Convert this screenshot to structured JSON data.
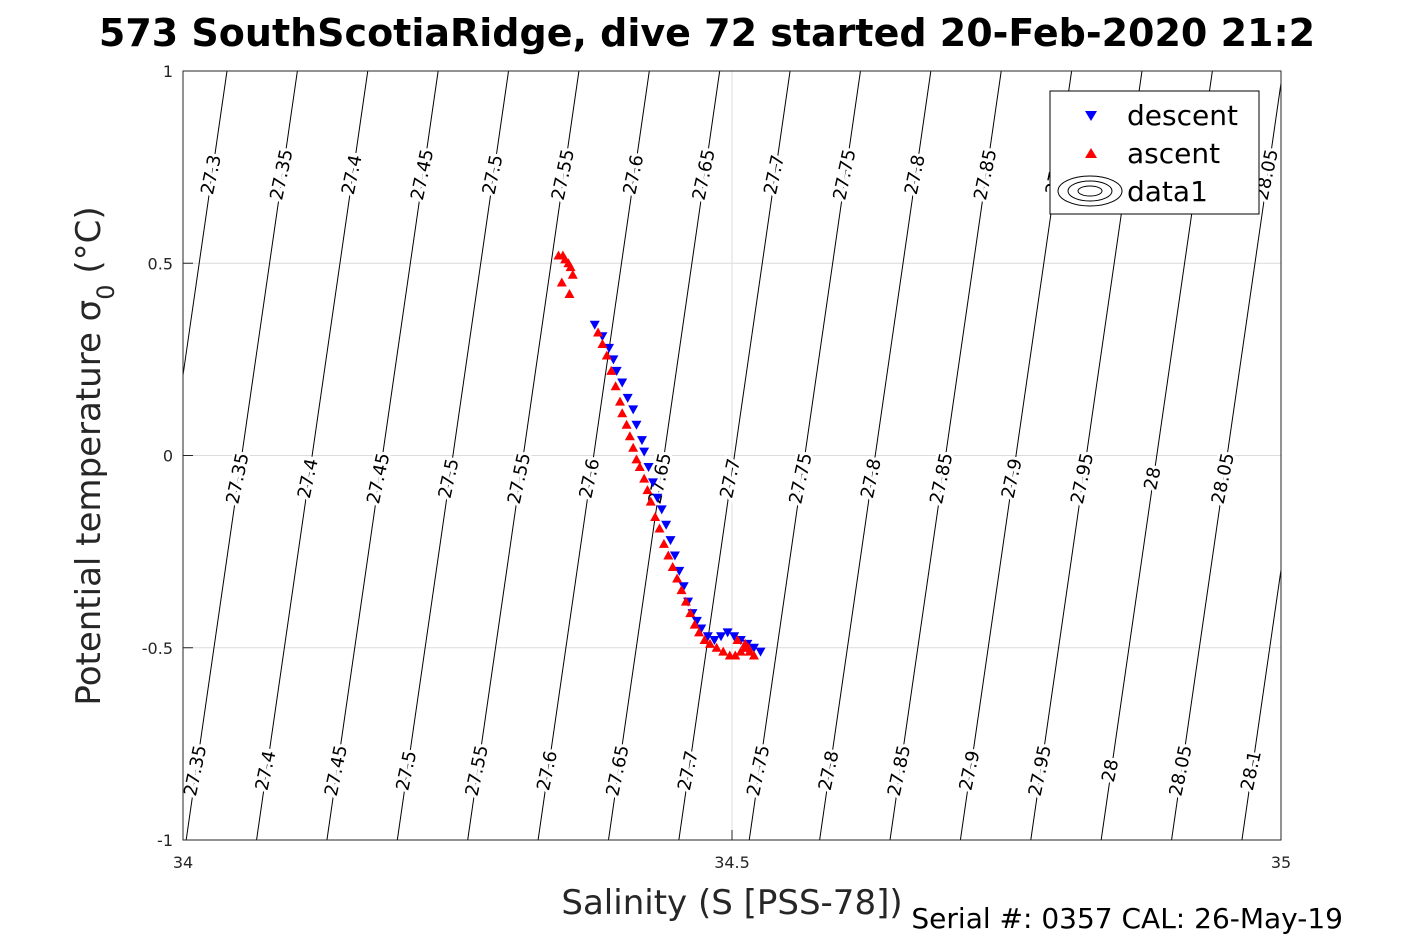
{
  "chart_data": {
    "type": "scatter",
    "title": "573 SouthScotiaRidge, dive 72 started 20-Feb-2020 21:2",
    "xlabel": "Salinity (S [PSS-78])",
    "ylabel_main": "Potential temperature σ",
    "ylabel_sub": "0",
    "ylabel_unit": " (°C)",
    "xlim": [
      34,
      35
    ],
    "ylim": [
      -1,
      1
    ],
    "xticks": [
      34,
      34.5,
      35
    ],
    "xtick_labels": [
      "34",
      "34.5",
      "35"
    ],
    "yticks": [
      -1,
      -0.5,
      0,
      0.5,
      1
    ],
    "ytick_labels": [
      "-1",
      "-0.5",
      "0",
      "0.5",
      "1"
    ],
    "grid": true,
    "legend_position": "top-right",
    "legend": [
      "descent",
      "ascent",
      "data1"
    ],
    "colors": {
      "descent": "#0000ff",
      "ascent": "#ff0000",
      "contour": "#000000",
      "grid": "#dcdcdc"
    },
    "density_contours": {
      "levels": [
        27.3,
        27.35,
        27.4,
        27.45,
        27.5,
        27.55,
        27.6,
        27.65,
        27.7,
        27.75,
        27.8,
        27.85,
        27.9,
        27.95,
        28,
        28.05,
        28.1
      ],
      "labels_top": [
        "27.3",
        "27.35",
        "27.4",
        "27.45",
        "27.5",
        "27.55",
        "27.6",
        "27.65",
        "27.7",
        "27.75",
        "27.8",
        "27.85",
        "27.9",
        "28.05"
      ],
      "labels_mid": [
        "27.35",
        "27.4",
        "27.45",
        "27.5",
        "27.55",
        "27.6",
        "27.65",
        "27.7",
        "27.75",
        "27.8",
        "27.85",
        "27.9",
        "27.95",
        "28",
        "28.05",
        "28.1"
      ],
      "labels_bottom": [
        "27.35",
        "27.4",
        "27.45",
        "27.5",
        "27.55",
        "27.6",
        "27.65",
        "27.7",
        "27.75",
        "27.8",
        "27.85",
        "27.9",
        "27.95",
        "28",
        "28.05",
        "28.1"
      ]
    },
    "series": [
      {
        "name": "descent",
        "marker": "triangle-down",
        "x": [
          34.375,
          34.382,
          34.388,
          34.392,
          34.395,
          34.4,
          34.405,
          34.41,
          34.413,
          34.418,
          34.42,
          34.424,
          34.428,
          34.432,
          34.436,
          34.44,
          34.444,
          34.448,
          34.452,
          34.456,
          34.46,
          34.464,
          34.468,
          34.472,
          34.478,
          34.484,
          34.49,
          34.496,
          34.502,
          34.508,
          34.514,
          34.52,
          34.526
        ],
        "y": [
          0.34,
          0.31,
          0.28,
          0.25,
          0.22,
          0.19,
          0.15,
          0.12,
          0.08,
          0.04,
          0.01,
          -0.03,
          -0.07,
          -0.11,
          -0.14,
          -0.18,
          -0.22,
          -0.26,
          -0.3,
          -0.34,
          -0.38,
          -0.41,
          -0.43,
          -0.45,
          -0.47,
          -0.48,
          -0.47,
          -0.46,
          -0.47,
          -0.48,
          -0.49,
          -0.5,
          -0.51
        ]
      },
      {
        "name": "ascent",
        "marker": "triangle-up",
        "x": [
          34.342,
          34.346,
          34.348,
          34.351,
          34.353,
          34.355,
          34.345,
          34.352,
          34.378,
          34.382,
          34.386,
          34.39,
          34.394,
          34.398,
          34.4,
          34.404,
          34.407,
          34.41,
          34.413,
          34.416,
          34.42,
          34.423,
          34.426,
          34.43,
          34.434,
          34.438,
          34.442,
          34.446,
          34.45,
          34.454,
          34.458,
          34.462,
          34.466,
          34.47,
          34.475,
          34.48,
          34.486,
          34.492,
          34.498,
          34.503,
          34.508,
          34.512,
          34.516,
          34.52,
          34.512,
          34.505,
          34.515
        ],
        "y": [
          0.52,
          0.52,
          0.51,
          0.5,
          0.49,
          0.47,
          0.45,
          0.42,
          0.32,
          0.29,
          0.26,
          0.22,
          0.18,
          0.14,
          0.11,
          0.08,
          0.05,
          0.02,
          -0.01,
          -0.03,
          -0.06,
          -0.09,
          -0.12,
          -0.16,
          -0.19,
          -0.23,
          -0.26,
          -0.29,
          -0.32,
          -0.35,
          -0.38,
          -0.41,
          -0.44,
          -0.46,
          -0.48,
          -0.49,
          -0.5,
          -0.51,
          -0.52,
          -0.52,
          -0.51,
          -0.5,
          -0.51,
          -0.52,
          -0.49,
          -0.48,
          -0.5
        ]
      }
    ]
  },
  "footer": {
    "serial": "Serial #: 0357  CAL: 26-May-19"
  }
}
